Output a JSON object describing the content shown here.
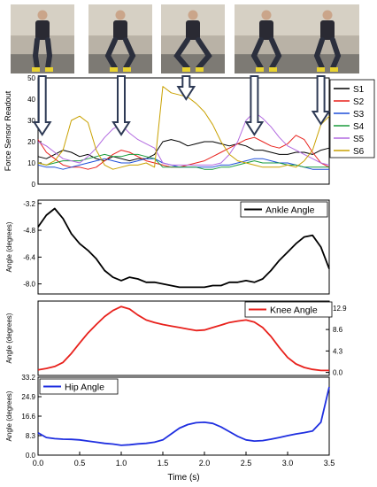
{
  "chart_data": {
    "type": "line",
    "photos": [
      "photo-1",
      "photo-2",
      "photo-3",
      "photo-4",
      "photo-5"
    ],
    "x_axis": {
      "label": "Time (s)",
      "range": [
        0,
        3.5
      ],
      "ticks": [
        "0.0",
        "0.5",
        "1.0",
        "1.5",
        "2.0",
        "2.5",
        "3.0",
        "3.5"
      ],
      "tick_values": [
        0,
        0.5,
        1.0,
        1.5,
        2.0,
        2.5,
        3.0,
        3.5
      ]
    },
    "panels": [
      {
        "id": "force",
        "ylabel": "Force Sensor Readout",
        "yrange": [
          0,
          50
        ],
        "yticks": [
          "0",
          "10",
          "20",
          "30",
          "40",
          "50"
        ],
        "ytick_values": [
          0,
          10,
          20,
          30,
          40,
          50
        ],
        "arrows_at_x": [
          0.05,
          1.0,
          1.78,
          2.6,
          3.4
        ],
        "legend": [
          "S1",
          "S2",
          "S3",
          "S4",
          "S5",
          "S6"
        ],
        "series": [
          {
            "name": "S1",
            "color": "#000000",
            "x": [
              0,
              0.1,
              0.2,
              0.3,
              0.4,
              0.5,
              0.6,
              0.7,
              0.8,
              0.9,
              1.0,
              1.1,
              1.2,
              1.3,
              1.4,
              1.5,
              1.6,
              1.7,
              1.8,
              1.9,
              2.0,
              2.1,
              2.2,
              2.3,
              2.4,
              2.5,
              2.6,
              2.7,
              2.8,
              2.9,
              3.0,
              3.1,
              3.2,
              3.3,
              3.4,
              3.5
            ],
            "y": [
              13,
              12,
              14,
              16,
              15,
              13,
              14,
              12,
              11,
              13,
              12,
              11,
              12,
              12,
              14,
              20,
              21,
              20,
              18,
              19,
              20,
              20,
              19,
              18,
              19,
              18,
              16,
              16,
              15,
              14,
              14,
              15,
              15,
              14,
              16,
              17
            ]
          },
          {
            "name": "S2",
            "color": "#e8211c",
            "x": [
              0,
              0.1,
              0.2,
              0.3,
              0.4,
              0.5,
              0.6,
              0.7,
              0.8,
              0.9,
              1.0,
              1.1,
              1.2,
              1.3,
              1.4,
              1.5,
              1.6,
              1.7,
              1.8,
              1.9,
              2.0,
              2.1,
              2.2,
              2.3,
              2.4,
              2.5,
              2.6,
              2.7,
              2.8,
              2.9,
              3.0,
              3.1,
              3.2,
              3.3,
              3.4,
              3.5
            ],
            "y": [
              21,
              15,
              12,
              9,
              8,
              8,
              7,
              8,
              11,
              14,
              16,
              15,
              13,
              11,
              10,
              9,
              8,
              8,
              9,
              10,
              11,
              13,
              15,
              17,
              19,
              21,
              22,
              20,
              18,
              17,
              19,
              23,
              21,
              15,
              10,
              8
            ]
          },
          {
            "name": "S3",
            "color": "#1f4fd8",
            "x": [
              0,
              0.1,
              0.2,
              0.3,
              0.4,
              0.5,
              0.6,
              0.7,
              0.8,
              0.9,
              1.0,
              1.1,
              1.2,
              1.3,
              1.4,
              1.5,
              1.6,
              1.7,
              1.8,
              1.9,
              2.0,
              2.1,
              2.2,
              2.3,
              2.4,
              2.5,
              2.6,
              2.7,
              2.8,
              2.9,
              3.0,
              3.1,
              3.2,
              3.3,
              3.4,
              3.5
            ],
            "y": [
              9,
              8,
              8,
              7,
              8,
              9,
              10,
              11,
              12,
              11,
              10,
              10,
              11,
              12,
              12,
              10,
              9,
              8,
              8,
              8,
              8,
              8,
              9,
              9,
              10,
              11,
              12,
              12,
              11,
              10,
              10,
              9,
              8,
              7,
              7,
              7
            ]
          },
          {
            "name": "S4",
            "color": "#1a9c3c",
            "x": [
              0,
              0.1,
              0.2,
              0.3,
              0.4,
              0.5,
              0.6,
              0.7,
              0.8,
              0.9,
              1.0,
              1.1,
              1.2,
              1.3,
              1.4,
              1.5,
              1.6,
              1.7,
              1.8,
              1.9,
              2.0,
              2.1,
              2.2,
              2.3,
              2.4,
              2.5,
              2.6,
              2.7,
              2.8,
              2.9,
              3.0,
              3.1,
              3.2,
              3.3,
              3.4,
              3.5
            ],
            "y": [
              10,
              9,
              10,
              11,
              11,
              11,
              12,
              13,
              14,
              13,
              13,
              14,
              14,
              13,
              12,
              8,
              8,
              8,
              8,
              8,
              7,
              7,
              8,
              8,
              9,
              10,
              11,
              10,
              10,
              10,
              9,
              9,
              8,
              8,
              8,
              8
            ]
          },
          {
            "name": "S5",
            "color": "#b26ae0",
            "x": [
              0,
              0.1,
              0.2,
              0.3,
              0.4,
              0.5,
              0.6,
              0.7,
              0.8,
              0.9,
              1.0,
              1.1,
              1.2,
              1.3,
              1.4,
              1.5,
              1.6,
              1.7,
              1.8,
              1.9,
              2.0,
              2.1,
              2.2,
              2.3,
              2.4,
              2.5,
              2.6,
              2.7,
              2.8,
              2.9,
              3.0,
              3.1,
              3.2,
              3.3,
              3.4,
              3.5
            ],
            "y": [
              20,
              18,
              15,
              12,
              11,
              10,
              13,
              17,
              22,
              26,
              28,
              24,
              21,
              19,
              17,
              10,
              9,
              9,
              9,
              9,
              9,
              9,
              10,
              14,
              20,
              30,
              34,
              31,
              27,
              22,
              18,
              16,
              14,
              12,
              10,
              9
            ]
          },
          {
            "name": "S6",
            "color": "#c9a100",
            "x": [
              0,
              0.1,
              0.2,
              0.3,
              0.4,
              0.5,
              0.6,
              0.7,
              0.8,
              0.9,
              1.0,
              1.1,
              1.2,
              1.3,
              1.4,
              1.5,
              1.6,
              1.7,
              1.8,
              1.9,
              2.0,
              2.1,
              2.2,
              2.3,
              2.4,
              2.5,
              2.6,
              2.7,
              2.8,
              2.9,
              3.0,
              3.1,
              3.2,
              3.3,
              3.4,
              3.5
            ],
            "y": [
              10,
              9,
              11,
              16,
              30,
              32,
              29,
              16,
              9,
              7,
              8,
              9,
              9,
              10,
              8,
              46,
              43,
              42,
              41,
              38,
              34,
              28,
              20,
              14,
              11,
              10,
              9,
              8,
              8,
              8,
              9,
              8,
              11,
              16,
              28,
              32
            ]
          }
        ]
      },
      {
        "id": "ankle",
        "ylabel": "Angle (degrees)",
        "yrange": [
          -8.6,
          -3.0
        ],
        "yticks": [
          "-3.2",
          "-4.8",
          "-6.4",
          "-8.0"
        ],
        "ytick_values": [
          -3.2,
          -4.8,
          -6.4,
          -8.0
        ],
        "yaxis_side": "left",
        "legend": [
          "Ankle Angle"
        ],
        "series": [
          {
            "name": "Ankle Angle",
            "color": "#000000",
            "x": [
              0,
              0.1,
              0.2,
              0.3,
              0.4,
              0.5,
              0.6,
              0.7,
              0.8,
              0.9,
              1.0,
              1.1,
              1.2,
              1.3,
              1.4,
              1.5,
              1.6,
              1.7,
              1.8,
              1.9,
              2.0,
              2.1,
              2.2,
              2.3,
              2.4,
              2.5,
              2.6,
              2.7,
              2.8,
              2.9,
              3.0,
              3.1,
              3.2,
              3.3,
              3.4,
              3.5
            ],
            "y": [
              -4.6,
              -3.9,
              -3.5,
              -4.1,
              -5.0,
              -5.6,
              -6.0,
              -6.5,
              -7.2,
              -7.6,
              -7.8,
              -7.6,
              -7.7,
              -7.9,
              -7.9,
              -8.0,
              -8.1,
              -8.2,
              -8.2,
              -8.2,
              -8.2,
              -8.1,
              -8.1,
              -7.9,
              -7.9,
              -7.8,
              -7.9,
              -7.7,
              -7.2,
              -6.6,
              -6.1,
              -5.6,
              -5.2,
              -5.1,
              -5.8,
              -7.1
            ]
          }
        ]
      },
      {
        "id": "knee",
        "ylabel": "Angle (degrees)",
        "yrange": [
          -0.6,
          14.3
        ],
        "yticks": [
          "0.0",
          "4.3",
          "8.6",
          "12.9"
        ],
        "ytick_values": [
          0,
          4.3,
          8.6,
          12.9
        ],
        "yaxis_side": "right",
        "legend": [
          "Knee Angle"
        ],
        "series": [
          {
            "name": "Knee Angle",
            "color": "#e8211c",
            "x": [
              0,
              0.1,
              0.2,
              0.3,
              0.4,
              0.5,
              0.6,
              0.7,
              0.8,
              0.9,
              1.0,
              1.1,
              1.2,
              1.3,
              1.4,
              1.5,
              1.6,
              1.7,
              1.8,
              1.9,
              2.0,
              2.1,
              2.2,
              2.3,
              2.4,
              2.5,
              2.6,
              2.7,
              2.8,
              2.9,
              3.0,
              3.1,
              3.2,
              3.3,
              3.4,
              3.5
            ],
            "y": [
              0.5,
              0.8,
              1.2,
              2.0,
              3.8,
              5.9,
              7.9,
              9.6,
              11.2,
              12.4,
              13.2,
              12.7,
              11.5,
              10.5,
              10.0,
              9.6,
              9.3,
              9.0,
              8.7,
              8.4,
              8.5,
              9.0,
              9.5,
              10.0,
              10.3,
              10.5,
              10.1,
              9.0,
              7.2,
              5.0,
              3.0,
              1.7,
              1.0,
              0.6,
              0.4,
              0.4
            ]
          }
        ]
      },
      {
        "id": "hip",
        "ylabel": "Angle (degrees)",
        "yrange": [
          0.0,
          33.2
        ],
        "yticks": [
          "0.0",
          "8.3",
          "16.6",
          "24.9",
          "33.2"
        ],
        "ytick_values": [
          0,
          8.3,
          16.6,
          24.9,
          33.2
        ],
        "yaxis_side": "left",
        "legend": [
          "Hip Angle"
        ],
        "series": [
          {
            "name": "Hip Angle",
            "color": "#1f2fe0",
            "x": [
              0,
              0.1,
              0.2,
              0.3,
              0.4,
              0.5,
              0.6,
              0.7,
              0.8,
              0.9,
              1.0,
              1.1,
              1.2,
              1.3,
              1.4,
              1.5,
              1.6,
              1.7,
              1.8,
              1.9,
              2.0,
              2.1,
              2.2,
              2.3,
              2.4,
              2.5,
              2.6,
              2.7,
              2.8,
              2.9,
              3.0,
              3.1,
              3.2,
              3.3,
              3.4,
              3.5
            ],
            "y": [
              9.5,
              7.5,
              7.0,
              6.8,
              6.7,
              6.5,
              6.0,
              5.5,
              5.0,
              4.7,
              4.2,
              4.4,
              4.8,
              5.0,
              5.5,
              6.5,
              9.0,
              11.5,
              13.0,
              13.8,
              14.0,
              13.5,
              12.0,
              10.0,
              8.0,
              6.5,
              6.0,
              6.2,
              6.8,
              7.5,
              8.3,
              9.0,
              9.6,
              10.3,
              14.0,
              29.0
            ]
          }
        ]
      }
    ]
  }
}
